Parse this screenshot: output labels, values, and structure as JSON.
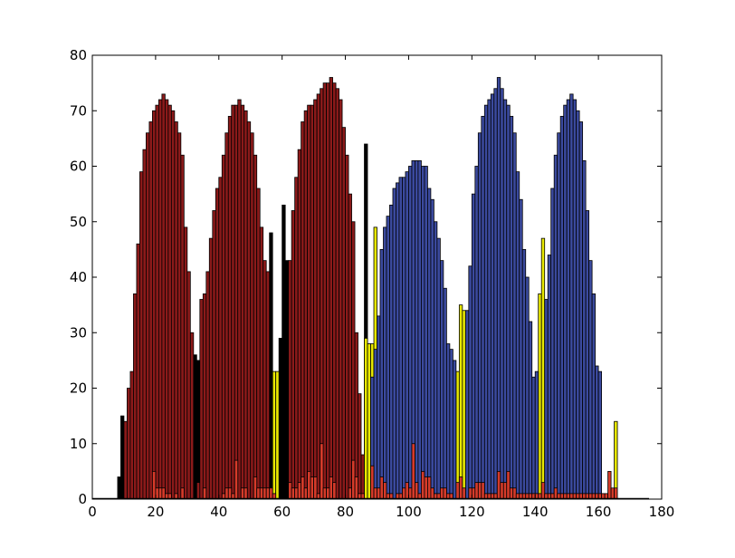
{
  "chart_data": {
    "type": "bar",
    "title": "",
    "xlabel": "",
    "ylabel": "",
    "xlim": [
      0,
      180
    ],
    "ylim": [
      0,
      80
    ],
    "xticks": [
      0,
      20,
      40,
      60,
      80,
      100,
      120,
      140,
      160,
      180
    ],
    "yticks": [
      0,
      10,
      20,
      30,
      40,
      50,
      60,
      70,
      80
    ],
    "grid": false,
    "legend": null,
    "bin_width": 1,
    "series": [
      {
        "color": "#000000",
        "bars": [
          [
            8,
            4
          ],
          [
            9,
            15
          ],
          [
            10,
            13
          ],
          [
            29,
            15
          ],
          [
            30,
            28
          ],
          [
            31,
            10
          ],
          [
            32,
            26
          ],
          [
            33,
            25
          ],
          [
            56,
            48
          ],
          [
            57,
            22
          ],
          [
            58,
            8
          ],
          [
            59,
            29
          ],
          [
            60,
            53
          ],
          [
            61,
            43
          ],
          [
            86,
            64
          ],
          [
            87,
            28
          ],
          [
            88,
            8
          ]
        ]
      },
      {
        "color": "#8b1a1a",
        "bars": [
          [
            10,
            14
          ],
          [
            11,
            20
          ],
          [
            12,
            23
          ],
          [
            13,
            37
          ],
          [
            14,
            46
          ],
          [
            15,
            59
          ],
          [
            16,
            63
          ],
          [
            17,
            66
          ],
          [
            18,
            68
          ],
          [
            19,
            70
          ],
          [
            20,
            71
          ],
          [
            21,
            72
          ],
          [
            22,
            73
          ],
          [
            23,
            72
          ],
          [
            24,
            71
          ],
          [
            25,
            70
          ],
          [
            26,
            68
          ],
          [
            27,
            66
          ],
          [
            28,
            62
          ],
          [
            29,
            49
          ],
          [
            30,
            41
          ],
          [
            31,
            30
          ],
          [
            33,
            3
          ],
          [
            34,
            36
          ],
          [
            35,
            37
          ],
          [
            36,
            41
          ],
          [
            37,
            47
          ],
          [
            38,
            52
          ],
          [
            39,
            56
          ],
          [
            40,
            58
          ],
          [
            41,
            62
          ],
          [
            42,
            66
          ],
          [
            43,
            69
          ],
          [
            44,
            71
          ],
          [
            45,
            71
          ],
          [
            46,
            72
          ],
          [
            47,
            71
          ],
          [
            48,
            70
          ],
          [
            49,
            68
          ],
          [
            50,
            66
          ],
          [
            51,
            62
          ],
          [
            52,
            56
          ],
          [
            53,
            49
          ],
          [
            54,
            43
          ],
          [
            55,
            41
          ],
          [
            62,
            43
          ],
          [
            63,
            52
          ],
          [
            64,
            58
          ],
          [
            65,
            63
          ],
          [
            66,
            68
          ],
          [
            67,
            70
          ],
          [
            68,
            71
          ],
          [
            69,
            71
          ],
          [
            70,
            72
          ],
          [
            71,
            73
          ],
          [
            72,
            74
          ],
          [
            73,
            75
          ],
          [
            74,
            75
          ],
          [
            75,
            76
          ],
          [
            76,
            75
          ],
          [
            77,
            74
          ],
          [
            78,
            72
          ],
          [
            79,
            67
          ],
          [
            80,
            62
          ],
          [
            81,
            55
          ],
          [
            82,
            50
          ],
          [
            83,
            30
          ],
          [
            84,
            19
          ],
          [
            85,
            8
          ]
        ]
      },
      {
        "color": "#e8e800",
        "bars": [
          [
            57,
            23
          ],
          [
            58,
            23
          ],
          [
            86,
            29
          ],
          [
            87,
            28
          ],
          [
            88,
            28
          ],
          [
            89,
            49
          ],
          [
            90,
            20
          ],
          [
            115,
            23
          ],
          [
            116,
            35
          ],
          [
            117,
            34
          ],
          [
            141,
            37
          ],
          [
            142,
            47
          ],
          [
            165,
            14
          ]
        ]
      },
      {
        "color": "#3b4a9e",
        "bars": [
          [
            88,
            22
          ],
          [
            89,
            27
          ],
          [
            90,
            33
          ],
          [
            91,
            45
          ],
          [
            92,
            49
          ],
          [
            93,
            51
          ],
          [
            94,
            53
          ],
          [
            95,
            56
          ],
          [
            96,
            57
          ],
          [
            97,
            58
          ],
          [
            98,
            58
          ],
          [
            99,
            59
          ],
          [
            100,
            60
          ],
          [
            101,
            61
          ],
          [
            102,
            61
          ],
          [
            103,
            61
          ],
          [
            104,
            60
          ],
          [
            105,
            60
          ],
          [
            106,
            56
          ],
          [
            107,
            54
          ],
          [
            108,
            50
          ],
          [
            109,
            47
          ],
          [
            110,
            43
          ],
          [
            111,
            38
          ],
          [
            112,
            28
          ],
          [
            113,
            27
          ],
          [
            114,
            25
          ],
          [
            118,
            34
          ],
          [
            119,
            42
          ],
          [
            120,
            55
          ],
          [
            121,
            60
          ],
          [
            122,
            66
          ],
          [
            123,
            69
          ],
          [
            124,
            71
          ],
          [
            125,
            72
          ],
          [
            126,
            73
          ],
          [
            127,
            74
          ],
          [
            128,
            76
          ],
          [
            129,
            74
          ],
          [
            130,
            72
          ],
          [
            131,
            71
          ],
          [
            132,
            69
          ],
          [
            133,
            66
          ],
          [
            134,
            59
          ],
          [
            135,
            54
          ],
          [
            136,
            45
          ],
          [
            137,
            40
          ],
          [
            138,
            32
          ],
          [
            139,
            22
          ],
          [
            140,
            23
          ],
          [
            143,
            36
          ],
          [
            144,
            44
          ],
          [
            145,
            56
          ],
          [
            146,
            62
          ],
          [
            147,
            66
          ],
          [
            148,
            69
          ],
          [
            149,
            71
          ],
          [
            150,
            72
          ],
          [
            151,
            73
          ],
          [
            152,
            72
          ],
          [
            153,
            70
          ],
          [
            154,
            68
          ],
          [
            155,
            61
          ],
          [
            156,
            52
          ],
          [
            157,
            43
          ],
          [
            158,
            37
          ],
          [
            159,
            24
          ],
          [
            160,
            23
          ]
        ]
      },
      {
        "color": "#d63b2a",
        "bars": [
          [
            19,
            5
          ],
          [
            20,
            2
          ],
          [
            21,
            2
          ],
          [
            22,
            2
          ],
          [
            23,
            1
          ],
          [
            24,
            1
          ],
          [
            26,
            1
          ],
          [
            28,
            2
          ],
          [
            35,
            2
          ],
          [
            41,
            1
          ],
          [
            42,
            2
          ],
          [
            43,
            2
          ],
          [
            44,
            1
          ],
          [
            45,
            7
          ],
          [
            47,
            2
          ],
          [
            48,
            2
          ],
          [
            51,
            4
          ],
          [
            52,
            2
          ],
          [
            53,
            2
          ],
          [
            54,
            2
          ],
          [
            55,
            2
          ],
          [
            56,
            2
          ],
          [
            57,
            1
          ],
          [
            62,
            3
          ],
          [
            63,
            2
          ],
          [
            64,
            2
          ],
          [
            65,
            3
          ],
          [
            66,
            4
          ],
          [
            67,
            2
          ],
          [
            68,
            5
          ],
          [
            69,
            4
          ],
          [
            70,
            4
          ],
          [
            71,
            1
          ],
          [
            72,
            10
          ],
          [
            73,
            2
          ],
          [
            74,
            2
          ],
          [
            75,
            4
          ],
          [
            76,
            3
          ],
          [
            81,
            2
          ],
          [
            82,
            7
          ],
          [
            83,
            4
          ],
          [
            84,
            1
          ],
          [
            85,
            1
          ],
          [
            88,
            6
          ],
          [
            89,
            2
          ],
          [
            90,
            2
          ],
          [
            91,
            4
          ],
          [
            92,
            3
          ],
          [
            93,
            1
          ],
          [
            94,
            1
          ],
          [
            96,
            1
          ],
          [
            97,
            1
          ],
          [
            98,
            2
          ],
          [
            99,
            3
          ],
          [
            100,
            2
          ],
          [
            101,
            10
          ],
          [
            102,
            3
          ],
          [
            103,
            1
          ],
          [
            104,
            5
          ],
          [
            105,
            4
          ],
          [
            106,
            4
          ],
          [
            107,
            2
          ],
          [
            108,
            1
          ],
          [
            109,
            1
          ],
          [
            110,
            2
          ],
          [
            111,
            2
          ],
          [
            112,
            1
          ],
          [
            113,
            1
          ],
          [
            115,
            3
          ],
          [
            116,
            4
          ],
          [
            117,
            2
          ],
          [
            119,
            2
          ],
          [
            120,
            2
          ],
          [
            121,
            3
          ],
          [
            122,
            3
          ],
          [
            123,
            3
          ],
          [
            124,
            1
          ],
          [
            125,
            1
          ],
          [
            126,
            1
          ],
          [
            127,
            1
          ],
          [
            128,
            5
          ],
          [
            129,
            3
          ],
          [
            130,
            3
          ],
          [
            131,
            5
          ],
          [
            132,
            2
          ],
          [
            133,
            2
          ],
          [
            134,
            1
          ],
          [
            135,
            1
          ],
          [
            136,
            1
          ],
          [
            137,
            1
          ],
          [
            138,
            1
          ],
          [
            139,
            1
          ],
          [
            140,
            1
          ],
          [
            141,
            1
          ],
          [
            142,
            3
          ],
          [
            143,
            1
          ],
          [
            144,
            1
          ],
          [
            145,
            1
          ],
          [
            146,
            2
          ],
          [
            147,
            1
          ],
          [
            148,
            1
          ],
          [
            149,
            1
          ],
          [
            150,
            1
          ],
          [
            151,
            1
          ],
          [
            152,
            1
          ],
          [
            153,
            1
          ],
          [
            154,
            1
          ],
          [
            155,
            1
          ],
          [
            156,
            1
          ],
          [
            157,
            1
          ],
          [
            158,
            1
          ],
          [
            159,
            1
          ],
          [
            160,
            1
          ],
          [
            161,
            1
          ],
          [
            162,
            1
          ],
          [
            163,
            5
          ],
          [
            164,
            2
          ],
          [
            165,
            2
          ]
        ]
      }
    ]
  }
}
